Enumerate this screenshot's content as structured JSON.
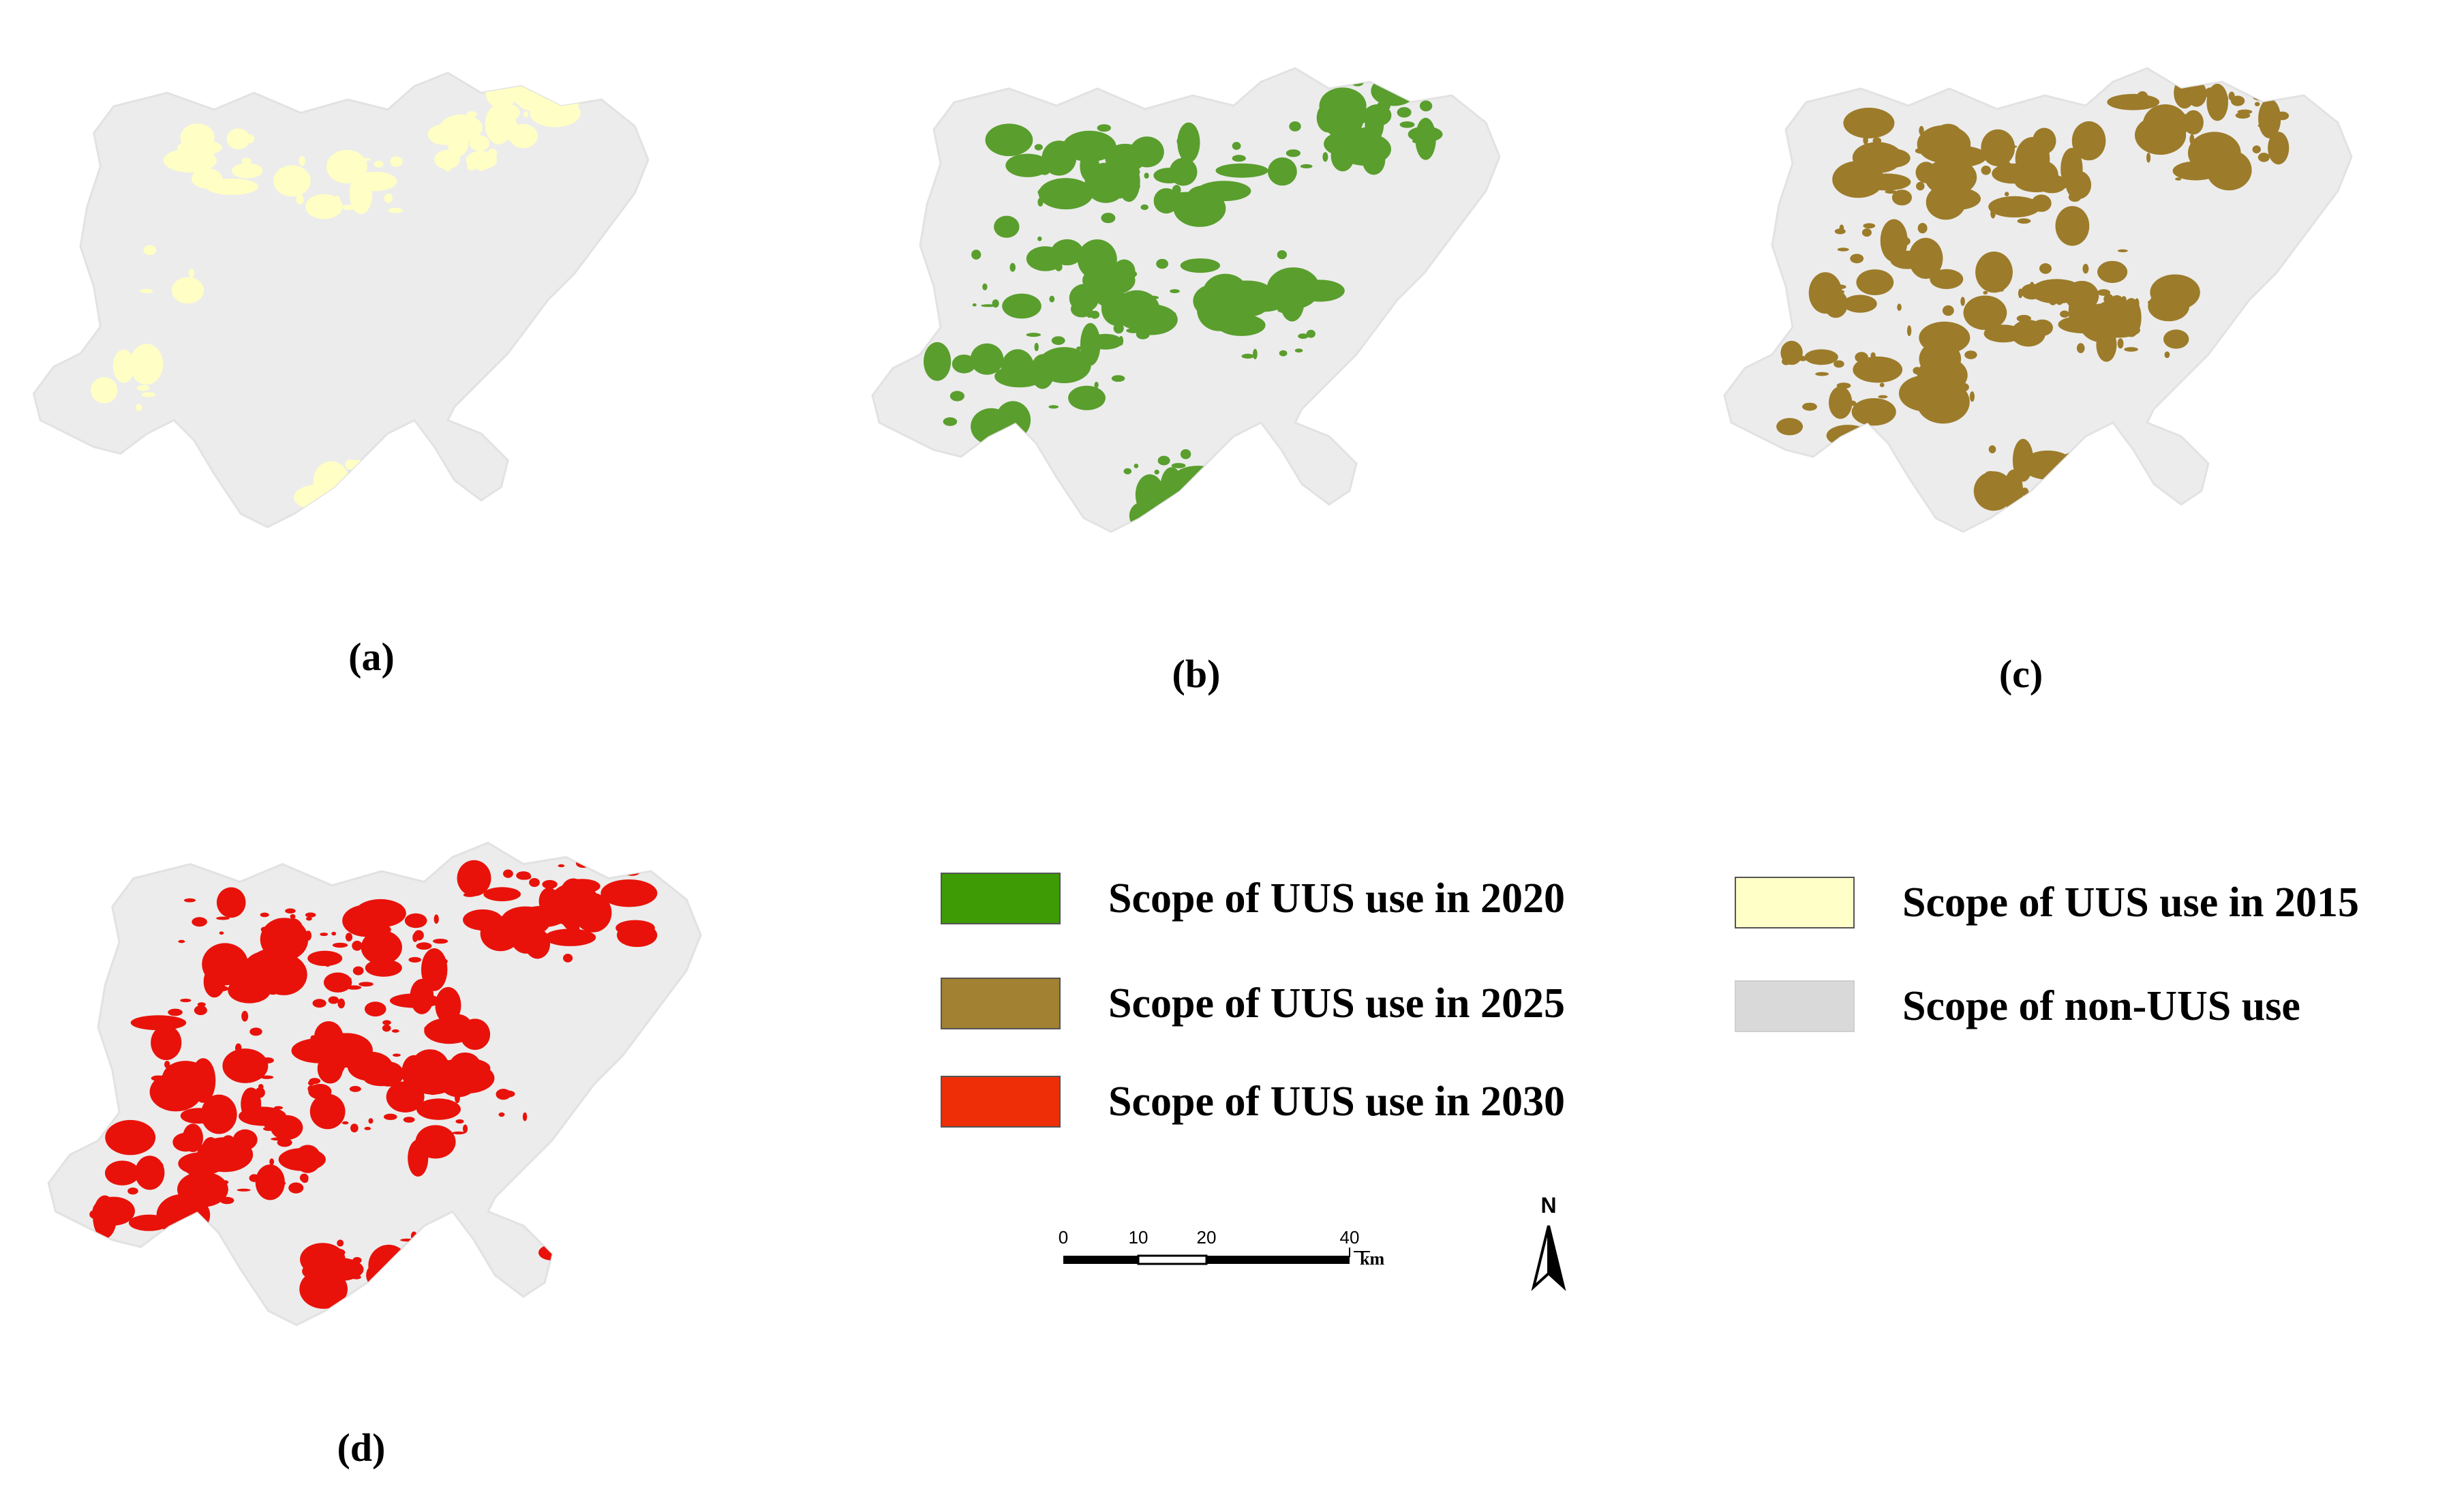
{
  "panels": [
    {
      "label": "(a)",
      "highlight": "#FFFFC5",
      "layer": "Scope of UUS use in 2015"
    },
    {
      "label": "(b)",
      "highlight": "#5A9E2E",
      "layer": "Scope of UUS use in 2020"
    },
    {
      "label": "(c)",
      "highlight": "#9C7B2A",
      "layer": "Scope of UUS use in 2025"
    },
    {
      "label": "(d)",
      "highlight": "#E8120A",
      "layer": "Scope of UUS use in 2030"
    }
  ],
  "legend": {
    "uus_2020": {
      "label": "Scope of UUS use in 2020",
      "color": "#3E9A05"
    },
    "uus_2025": {
      "label": "Scope of UUS use in 2025",
      "color": "#A28232"
    },
    "uus_2030": {
      "label": "Scope of UUS use in 2030",
      "color": "#EE2E06"
    },
    "uus_2015": {
      "label": "Scope of UUS use in 2015",
      "color": "#FFFFC8"
    },
    "non_uus": {
      "label": "Scope of non-UUS use",
      "color": "#D9D9D9"
    }
  },
  "scale_bar": {
    "ticks": [
      "0",
      "10",
      "20",
      "40"
    ],
    "unit": "km"
  },
  "north_arrow": {
    "letter": "N"
  },
  "colors": {
    "base_region": "#ECECEC"
  }
}
